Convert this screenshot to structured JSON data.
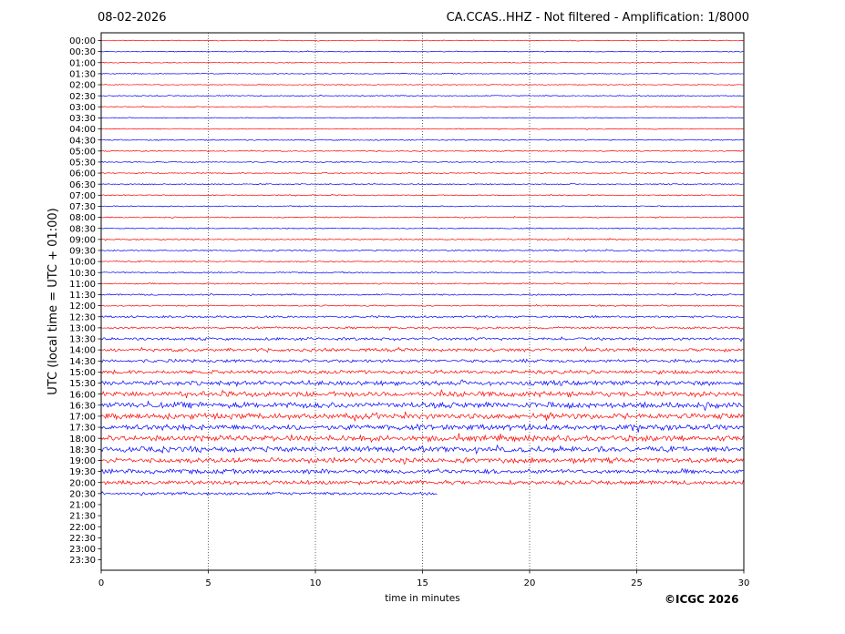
{
  "header": {
    "date": "08-02-2026",
    "title": "CA.CCAS..HHZ - Not filtered - Amplification: 1/8000"
  },
  "footer": {
    "copyright": "©ICGC 2026"
  },
  "chart_data": {
    "type": "line",
    "title": "CA.CCAS..HHZ - Not filtered - Amplification: 1/8000",
    "xlabel": "time in minutes",
    "ylabel": "UTC (local time = UTC + 01:00)",
    "xlim": [
      0,
      30
    ],
    "xticks": [
      "0",
      "5",
      "10",
      "15",
      "20",
      "25",
      "30"
    ],
    "vertical_gridlines_at": [
      5,
      10,
      15,
      20,
      25
    ],
    "row_labels": [
      "00:00",
      "00:30",
      "01:00",
      "01:30",
      "02:00",
      "02:30",
      "03:00",
      "03:30",
      "04:00",
      "04:30",
      "05:00",
      "05:30",
      "06:00",
      "06:30",
      "07:00",
      "07:30",
      "08:00",
      "08:30",
      "09:00",
      "09:30",
      "10:00",
      "10:30",
      "11:00",
      "11:30",
      "12:00",
      "12:30",
      "13:00",
      "13:30",
      "14:00",
      "14:30",
      "15:00",
      "15:30",
      "16:00",
      "16:30",
      "17:00",
      "17:30",
      "18:00",
      "18:30",
      "19:00",
      "19:30",
      "20:00",
      "20:30",
      "21:00",
      "21:30",
      "22:00",
      "22:30",
      "23:00",
      "23:30"
    ],
    "series_colors": [
      "#ff0000",
      "#0000ff"
    ],
    "trace_noise_amplitude": [
      0.4,
      0.4,
      0.4,
      0.4,
      0.4,
      0.5,
      0.4,
      0.4,
      0.4,
      0.5,
      0.5,
      0.5,
      0.5,
      0.5,
      0.5,
      0.5,
      0.5,
      0.5,
      0.6,
      0.6,
      0.6,
      0.6,
      0.6,
      0.7,
      0.6,
      0.9,
      0.9,
      1.2,
      1.4,
      1.4,
      1.6,
      2.0,
      2.4,
      2.6,
      2.5,
      2.5,
      2.6,
      2.4,
      2.3,
      2.0,
      1.8,
      1.3
    ],
    "trace_end_minutes": [
      30,
      30,
      30,
      30,
      30,
      30,
      30,
      30,
      30,
      30,
      30,
      30,
      30,
      30,
      30,
      30,
      30,
      30,
      30,
      30,
      30,
      30,
      30,
      30,
      30,
      30,
      30,
      30,
      30,
      30,
      30,
      30,
      30,
      30,
      30,
      30,
      30,
      30,
      30,
      30,
      30,
      15.7
    ]
  }
}
